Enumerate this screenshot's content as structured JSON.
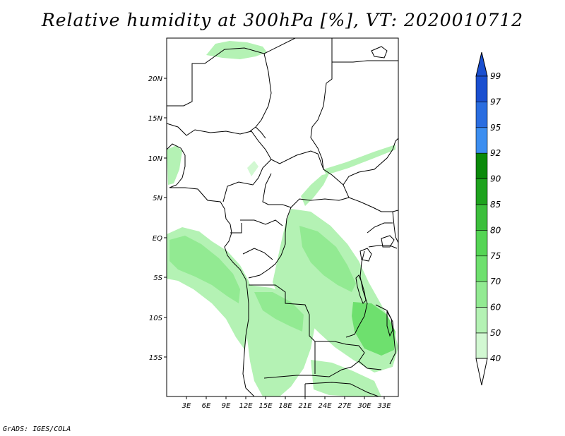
{
  "title": "Relative humidity at 300hPa [%], VT: 2020010712",
  "credit": "GrADS: IGES/COLA",
  "map": {
    "lat_labels": [
      "20N",
      "15N",
      "10N",
      "5N",
      "EQ",
      "5S",
      "10S",
      "15S"
    ],
    "lon_labels": [
      "3E",
      "6E",
      "9E",
      "12E",
      "15E",
      "18E",
      "21E",
      "24E",
      "27E",
      "30E",
      "33E"
    ]
  },
  "legend": {
    "labels": [
      "99",
      "97",
      "95",
      "92",
      "90",
      "85",
      "80",
      "75",
      "70",
      "60",
      "50",
      "40"
    ],
    "colors": [
      "#1a4fd0",
      "#2a6de0",
      "#3c8ef0",
      "#0a8a0a",
      "#1ea31e",
      "#3cbf3c",
      "#55d555",
      "#6ee06e",
      "#92ea92",
      "#b4f2b4",
      "#d2f8d2",
      "#effdef"
    ],
    "top_arrow_color": "#1a4fd0",
    "bottom_arrow_color": "#ffffff"
  }
}
